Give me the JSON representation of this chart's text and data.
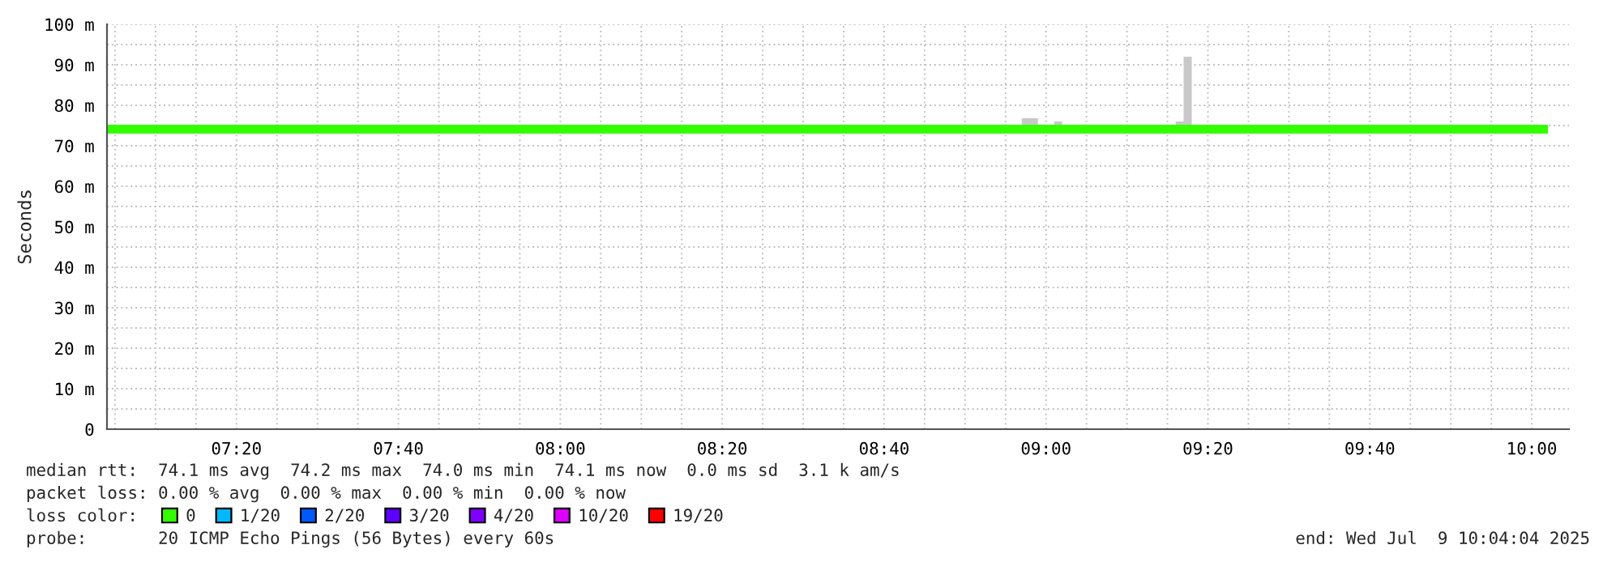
{
  "chart_data": {
    "type": "line",
    "ylabel": "Seconds",
    "x": [
      7.0667,
      8.95,
      8.9833,
      9.0167,
      9.0333,
      9.2667,
      9.2833,
      9.3,
      10.0333
    ],
    "series": [
      {
        "name": "0",
        "color": "#33ff00",
        "values": [
          74.1,
          74.1,
          74.1,
          74.1,
          74.1,
          74.1,
          74.1,
          74.1,
          74.1
        ],
        "lower": [
          74,
          74,
          74,
          74,
          74,
          74,
          74,
          74,
          74
        ],
        "upper": [
          74.6,
          76.8,
          74.6,
          76,
          74.6,
          76,
          92,
          74.6,
          74.6
        ]
      },
      {
        "name": "1/20",
        "color": "#00b8ff",
        "values": [
          null,
          null,
          null,
          null,
          null,
          null,
          null,
          null,
          null
        ]
      },
      {
        "name": "2/20",
        "color": "#0059ff",
        "values": [
          null,
          null,
          null,
          null,
          null,
          null,
          null,
          null,
          null
        ]
      },
      {
        "name": "3/20",
        "color": "#5e00ff",
        "values": [
          null,
          null,
          null,
          null,
          null,
          null,
          null,
          null,
          null
        ]
      },
      {
        "name": "4/20",
        "color": "#7e00ff",
        "values": [
          null,
          null,
          null,
          null,
          null,
          null,
          null,
          null,
          null
        ]
      },
      {
        "name": "10/20",
        "color": "#dd00ff",
        "values": [
          null,
          null,
          null,
          null,
          null,
          null,
          null,
          null,
          null
        ]
      },
      {
        "name": "19/20",
        "color": "#ff0000",
        "values": [
          null,
          null,
          null,
          null,
          null,
          null,
          null,
          null,
          null
        ]
      }
    ],
    "xlim": [
      7.0667,
      10.0767
    ],
    "xticks": [
      {
        "value": 7.0833,
        "label": null
      },
      {
        "value": 7.1667,
        "label": null
      },
      {
        "value": 7.25,
        "label": null
      },
      {
        "value": 7.3333,
        "label": "07:20"
      },
      {
        "value": 7.4167,
        "label": null
      },
      {
        "value": 7.5,
        "label": null
      },
      {
        "value": 7.5833,
        "label": null
      },
      {
        "value": 7.6667,
        "label": "07:40"
      },
      {
        "value": 7.75,
        "label": null
      },
      {
        "value": 7.8333,
        "label": null
      },
      {
        "value": 7.9167,
        "label": null
      },
      {
        "value": 8,
        "label": "08:00"
      },
      {
        "value": 8.0833,
        "label": null
      },
      {
        "value": 8.1667,
        "label": null
      },
      {
        "value": 8.25,
        "label": null
      },
      {
        "value": 8.3333,
        "label": "08:20"
      },
      {
        "value": 8.4167,
        "label": null
      },
      {
        "value": 8.5,
        "label": null
      },
      {
        "value": 8.5833,
        "label": null
      },
      {
        "value": 8.6667,
        "label": "08:40"
      },
      {
        "value": 8.75,
        "label": null
      },
      {
        "value": 8.8333,
        "label": null
      },
      {
        "value": 8.9167,
        "label": null
      },
      {
        "value": 9,
        "label": "09:00"
      },
      {
        "value": 9.0833,
        "label": null
      },
      {
        "value": 9.1667,
        "label": null
      },
      {
        "value": 9.25,
        "label": null
      },
      {
        "value": 9.3333,
        "label": "09:20"
      },
      {
        "value": 9.4167,
        "label": null
      },
      {
        "value": 9.5,
        "label": null
      },
      {
        "value": 9.5833,
        "label": null
      },
      {
        "value": 9.6667,
        "label": "09:40"
      },
      {
        "value": 9.75,
        "label": null
      },
      {
        "value": 9.8333,
        "label": null
      },
      {
        "value": 9.9167,
        "label": null
      },
      {
        "value": 10,
        "label": "10:00"
      }
    ],
    "ylim": [
      0,
      100
    ],
    "yticks": [
      0,
      {
        "value": 5,
        "label": null
      },
      {
        "value": 10,
        "label": "10 m"
      },
      {
        "value": 15,
        "label": null
      },
      {
        "value": 20,
        "label": "20 m"
      },
      {
        "value": 25,
        "label": null
      },
      {
        "value": 30,
        "label": "30 m"
      },
      {
        "value": 35,
        "label": null
      },
      {
        "value": 40,
        "label": "40 m"
      },
      {
        "value": 45,
        "label": null
      },
      {
        "value": 50,
        "label": "50 m"
      },
      {
        "value": 55,
        "label": null
      },
      {
        "value": 60,
        "label": "60 m"
      },
      {
        "value": 65,
        "label": null
      },
      {
        "value": 70,
        "label": "70 m"
      },
      {
        "value": 75,
        "label": null
      },
      {
        "value": 80,
        "label": "80 m"
      },
      {
        "value": 85,
        "label": null
      },
      {
        "value": 90,
        "label": "90 m"
      },
      {
        "value": 95,
        "label": null
      },
      {
        "value": 100,
        "label": "100 m"
      }
    ],
    "grid": true,
    "legend": "bottom",
    "annotations": [
      "median rtt:  74.1 ms avg  74.2 ms max  74.0 ms min  74.1 ms now  0.0 ms sd  3.1 k am/s",
      "packet loss: 0.00 % avg  0.00 % max  0.00 % min  0.00 % now",
      "loss color:",
      "probe:       20 ICMP Echo Pings (56 Bytes) every 60s",
      "end: Wed Jul  9 10:04:04 2025"
    ]
  }
}
